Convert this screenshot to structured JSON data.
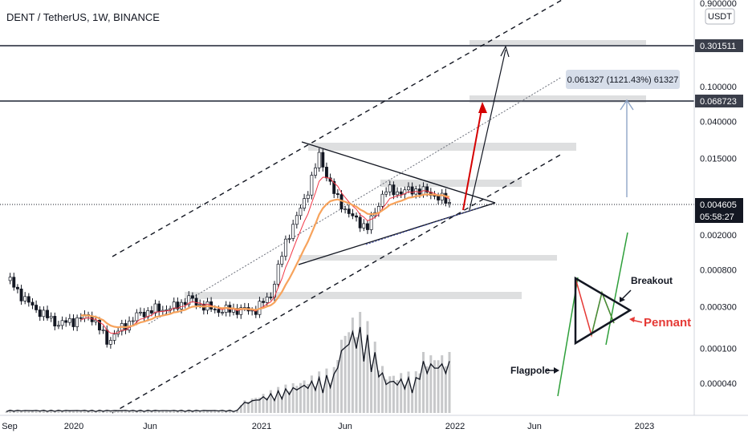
{
  "header": {
    "symbol": "DENT / TetherUS, 1W, BINANCE"
  },
  "price_axis": {
    "currency_badge": "USDT",
    "ticks": [
      "0.900000",
      "0.100000",
      "0.040000",
      "0.015000",
      "0.002000",
      "0.000800",
      "0.000300",
      "0.000100",
      "0.000040"
    ],
    "labels": [
      {
        "text": "0.301511",
        "style": "dark"
      },
      {
        "text": "0.068723",
        "style": "dark"
      },
      {
        "text": "0.004605",
        "style": "black"
      },
      {
        "text": "05:58:27",
        "style": "black"
      }
    ]
  },
  "time_axis": {
    "ticks": [
      "Sep",
      "2020",
      "Jun",
      "2021",
      "Jun",
      "2022",
      "Jun",
      "2023"
    ]
  },
  "measure_label": "0.061327 (1121.43%) 61327",
  "annotations": {
    "breakout": "Breakout",
    "pennant": "Pennant",
    "flagpole": "Flagpole"
  },
  "colors": {
    "up": "#26a69a",
    "down": "#ef5350",
    "ema_fast": "#f23645",
    "ema_slow": "#f7a35c",
    "target_arrow_red": "#d50000",
    "flag_green": "#2e9f3a",
    "pennant_red": "#e53935",
    "zone": "#d9dadb"
  },
  "chart_data": {
    "type": "line",
    "title": "DENT / TetherUS, 1W, BINANCE",
    "log_scale": true,
    "x_ticks": [
      "Sep",
      "2020",
      "Jun",
      "2021",
      "Jun",
      "2022",
      "Jun",
      "2023"
    ],
    "y_ticks": [
      0.9,
      0.1,
      0.04,
      0.015,
      0.002,
      0.0008,
      0.0003,
      0.0001,
      4e-05
    ],
    "series": [
      {
        "x": [
          "2019-09",
          "2019-10",
          "2019-11",
          "2019-12",
          "2020-01",
          "2020-02",
          "2020-03",
          "2020-04",
          "2020-05",
          "2020-06",
          "2020-07",
          "2020-08",
          "2020-09",
          "2020-10",
          "2020-11",
          "2020-12",
          "2021-01",
          "2021-02",
          "2021-03",
          "2021-04",
          "2021-05",
          "2021-06",
          "2021-07",
          "2021-08",
          "2021-09",
          "2021-10",
          "2021-11",
          "2021-12"
        ],
        "values": [
          0.0006,
          0.00035,
          0.00025,
          0.00019,
          0.00021,
          0.00024,
          0.00012,
          0.00018,
          0.00025,
          0.00028,
          0.00029,
          0.00037,
          0.0003,
          0.00027,
          0.00028,
          0.00027,
          0.0004,
          0.0018,
          0.0045,
          0.016,
          0.0055,
          0.0032,
          0.0024,
          0.0065,
          0.0062,
          0.0066,
          0.0058,
          0.0046
        ]
      }
    ],
    "last_price": 0.004605,
    "levels": [
      0.301511,
      0.068723
    ],
    "measure": {
      "change": 0.061327,
      "percent": 1121.43,
      "ticks": 61327
    }
  }
}
